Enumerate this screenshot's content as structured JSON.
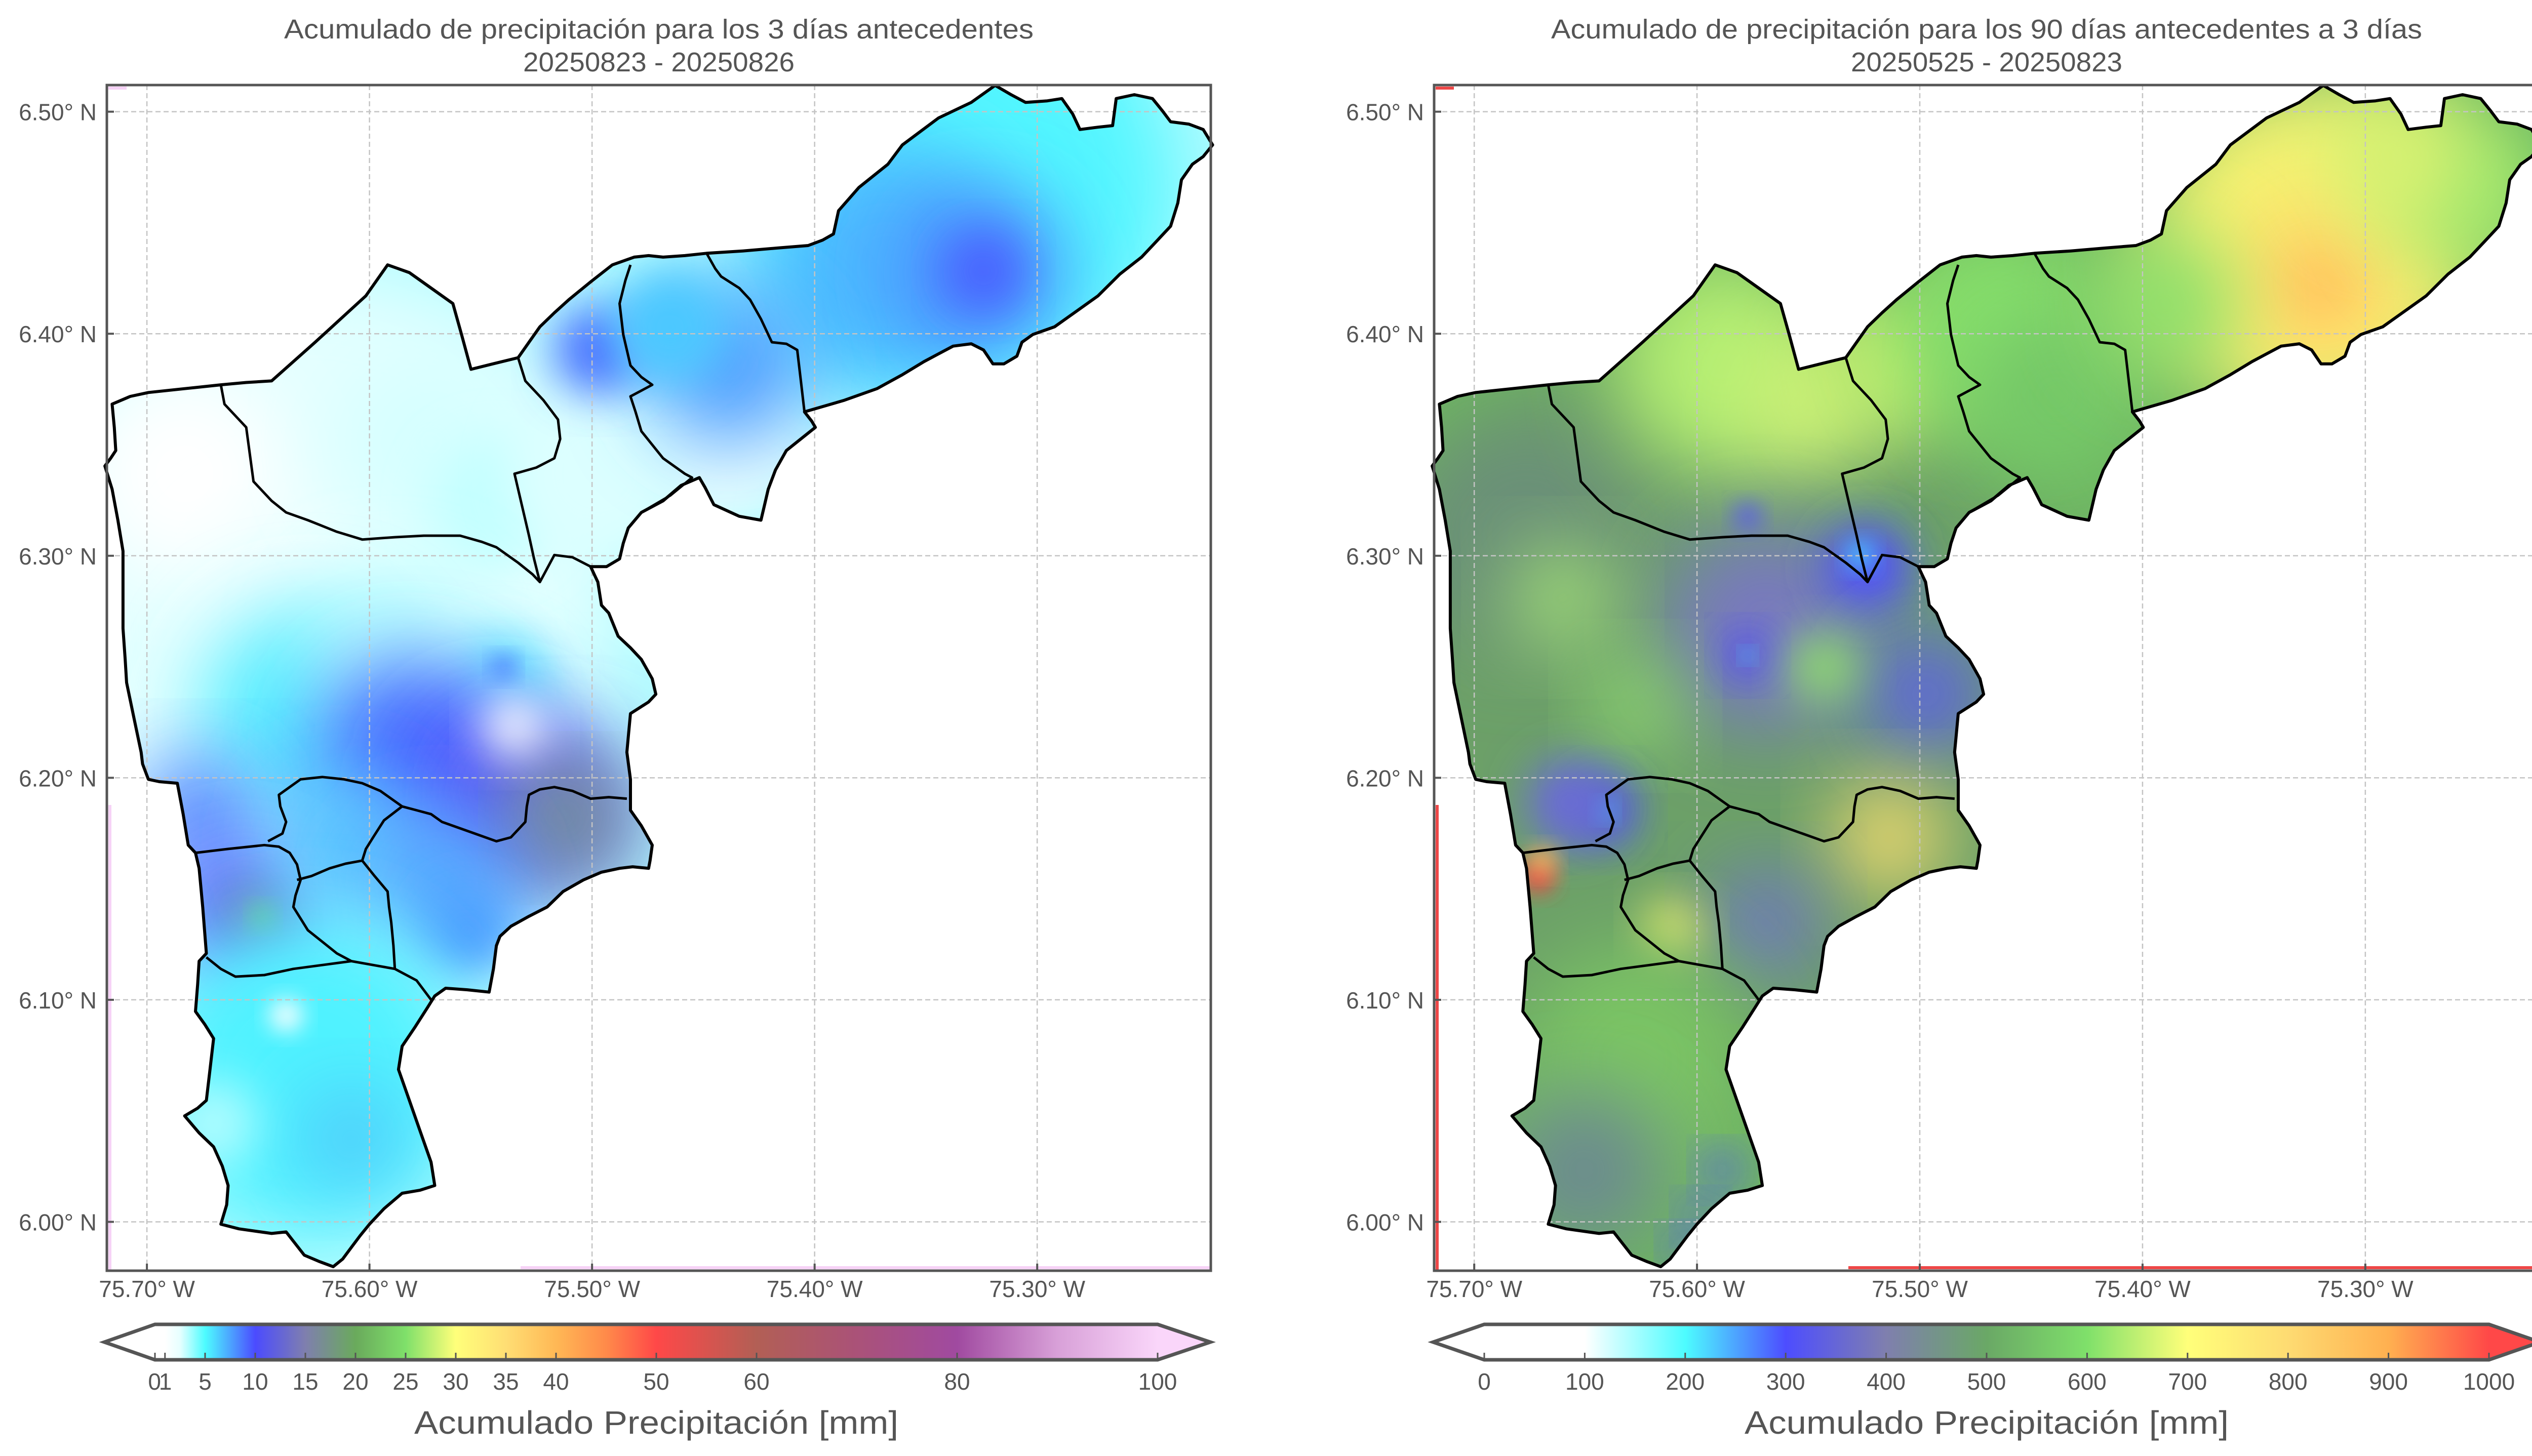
{
  "chart_data": [
    {
      "type": "heatmap",
      "title": "Acumulado de precipitación para los 3 días antecedentes",
      "subtitle": "20250823 - 20250826",
      "xlabel": "",
      "ylabel": "",
      "x_ticks": [
        "75.70° W",
        "75.60° W",
        "75.50° W",
        "75.40° W",
        "75.30° W"
      ],
      "x_tick_values": [
        -75.7,
        -75.6,
        -75.5,
        -75.4,
        -75.3
      ],
      "y_ticks": [
        "6.50° N",
        "6.40° N",
        "6.30° N",
        "6.20° N",
        "6.10° N",
        "6.00° N"
      ],
      "y_tick_values": [
        6.5,
        6.4,
        6.3,
        6.2,
        6.1,
        6.0
      ],
      "xlim": [
        -75.718,
        -75.222
      ],
      "ylim": [
        5.978,
        6.512
      ],
      "grid": true,
      "colorbar": {
        "label": "Acumulado Precipitación [mm]",
        "orientation": "horizontal",
        "placement": "bottom",
        "range": [
          0,
          100
        ],
        "extend": "both",
        "ticks": [
          0,
          1,
          5,
          10,
          15,
          20,
          25,
          30,
          35,
          40,
          50,
          60,
          80,
          100
        ],
        "tick_labels": [
          "0",
          "1",
          "5",
          "10",
          "15",
          "20",
          "25",
          "30",
          "35",
          "40",
          "50",
          "60",
          "80",
          "100"
        ],
        "stops": [
          {
            "value": 0,
            "color": "#ffffff"
          },
          {
            "value": 1,
            "color": "#ffffff"
          },
          {
            "value": 2.5,
            "color": "#e6ffff"
          },
          {
            "value": 5,
            "color": "#4dfcff"
          },
          {
            "value": 7.5,
            "color": "#4ca4ff"
          },
          {
            "value": 10,
            "color": "#4b4bff"
          },
          {
            "value": 15,
            "color": "#7f7fae"
          },
          {
            "value": 20,
            "color": "#6aaa5c"
          },
          {
            "value": 25,
            "color": "#7fe06a"
          },
          {
            "value": 30,
            "color": "#ffff7a"
          },
          {
            "value": 35,
            "color": "#ffde74"
          },
          {
            "value": 40,
            "color": "#ffb855"
          },
          {
            "value": 45,
            "color": "#ff8a4a"
          },
          {
            "value": 50,
            "color": "#ff4848"
          },
          {
            "value": 60,
            "color": "#b25f55"
          },
          {
            "value": 70,
            "color": "#aa5278"
          },
          {
            "value": 80,
            "color": "#a04aa0"
          },
          {
            "value": 90,
            "color": "#d8a0d8"
          },
          {
            "value": 100,
            "color": "#fad6fa"
          }
        ],
        "under_color": "#ffffff",
        "over_color": "#fad6fa"
      },
      "field_range_mm": [
        0,
        22
      ]
    },
    {
      "type": "heatmap",
      "title": "Acumulado de precipitación para los 90 días antecedentes a 3 días",
      "subtitle": "20250525 - 20250823",
      "xlabel": "",
      "ylabel": "",
      "x_ticks": [
        "75.70° W",
        "75.60° W",
        "75.50° W",
        "75.40° W",
        "75.30° W"
      ],
      "x_tick_values": [
        -75.7,
        -75.6,
        -75.5,
        -75.4,
        -75.3
      ],
      "y_ticks": [
        "6.50° N",
        "6.40° N",
        "6.30° N",
        "6.20° N",
        "6.10° N",
        "6.00° N"
      ],
      "y_tick_values": [
        6.5,
        6.4,
        6.3,
        6.2,
        6.1,
        6.0
      ],
      "xlim": [
        -75.718,
        -75.222
      ],
      "ylim": [
        5.978,
        6.512
      ],
      "grid": true,
      "colorbar": {
        "label": "Acumulado Precipitación [mm]",
        "orientation": "horizontal",
        "placement": "bottom",
        "range": [
          0,
          1000
        ],
        "extend": "both",
        "ticks": [
          0,
          100,
          200,
          300,
          400,
          500,
          600,
          700,
          800,
          900,
          1000
        ],
        "tick_labels": [
          "0",
          "100",
          "200",
          "300",
          "400",
          "500",
          "600",
          "700",
          "800",
          "900",
          "1000"
        ],
        "stops": [
          {
            "value": 0,
            "color": "#ffffff"
          },
          {
            "value": 100,
            "color": "#ffffff"
          },
          {
            "value": 200,
            "color": "#4dfcff"
          },
          {
            "value": 300,
            "color": "#4d4dff"
          },
          {
            "value": 400,
            "color": "#7f7fae"
          },
          {
            "value": 500,
            "color": "#6aa866"
          },
          {
            "value": 600,
            "color": "#7fe06a"
          },
          {
            "value": 700,
            "color": "#ffff7a"
          },
          {
            "value": 800,
            "color": "#fedb72"
          },
          {
            "value": 900,
            "color": "#ffb050"
          },
          {
            "value": 1000,
            "color": "#ff4848"
          }
        ],
        "under_color": "#ffffff",
        "over_color": "#ff4848"
      },
      "field_range_mm": [
        300,
        1000
      ]
    }
  ],
  "colors": {
    "text": "#555555",
    "outline": "#000000",
    "grid": "#c4c4c4",
    "background": "#ffffff"
  }
}
